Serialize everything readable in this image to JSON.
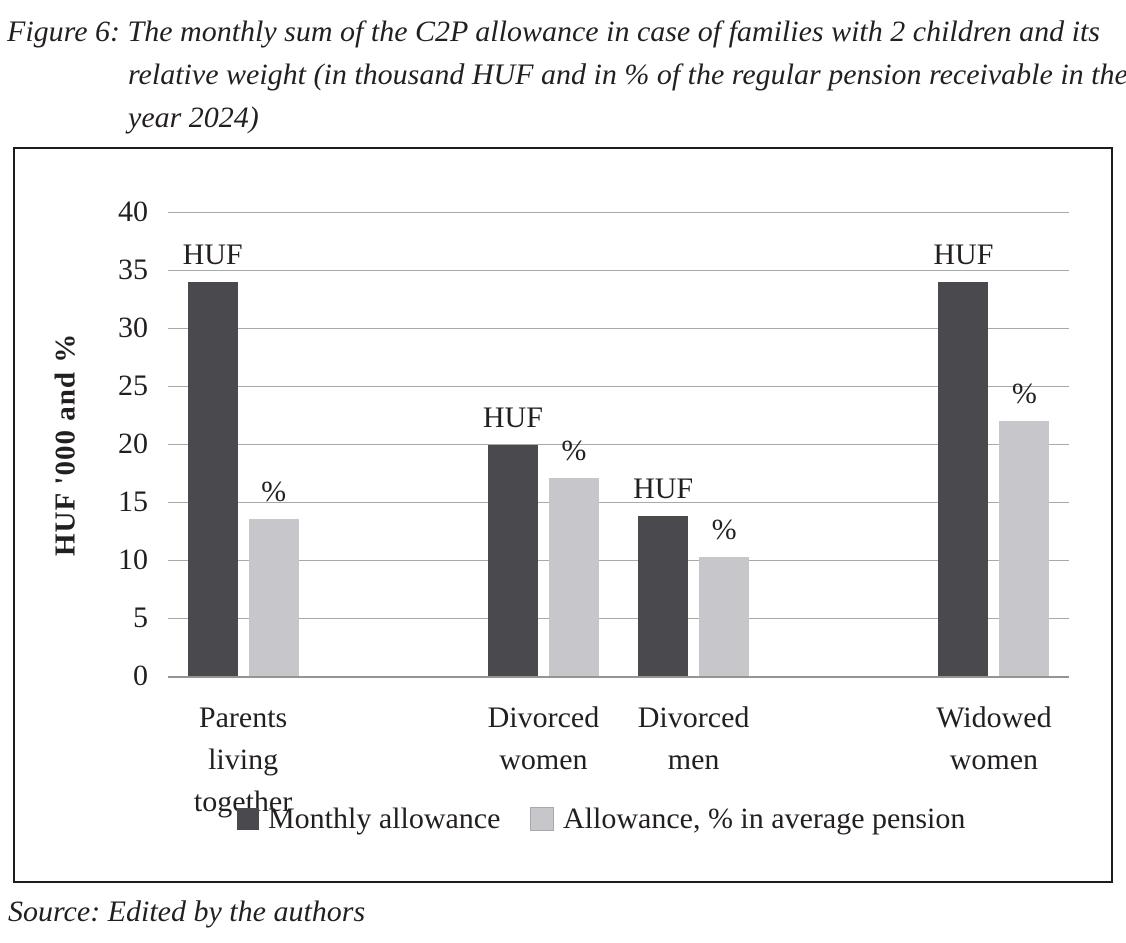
{
  "header": {
    "lines": [
      "Figure 6: The monthly sum of the C2P allowance in case of families with 2 children and its",
      "relative weight (in thousand HUF and in % of the regular pension receivable in the",
      "year 2024)"
    ]
  },
  "source": "Source: Edited by the authors",
  "colors": {
    "dark_bar": "#4a4a4e",
    "light_bar": "#c7c7cb",
    "gridline": "#a4ada4",
    "baseline": "#8f978f",
    "frame": "#1c1c1c",
    "text": "#231f20"
  },
  "chart_data": {
    "type": "bar",
    "figure_label": "Figure 6",
    "title": "The monthly sum of the C2P allowance in case of families with 2 children and its relative weight (in thousand HUF and in % of the regular pension receivable in the year 2024)",
    "categories": [
      "Parents living together",
      "Divorced women",
      "Divorced men",
      "Widowed women"
    ],
    "series": [
      {
        "name": "Monthly allowance",
        "bar_label": "HUF",
        "color": "#4a4a4e",
        "values": [
          34.0,
          19.9,
          13.8,
          34.0
        ]
      },
      {
        "name": "Allowance, % in average pension",
        "bar_label": "%",
        "color": "#c7c7cb",
        "values": [
          13.5,
          17.1,
          10.3,
          22.0
        ]
      }
    ],
    "xlabel": "",
    "ylabel": "HUF '000 and %",
    "ylim": [
      0,
      40
    ],
    "y_ticks": [
      40,
      35,
      30,
      25,
      20,
      15,
      10,
      5,
      0
    ],
    "grid": true,
    "legend_position": "bottom-inside",
    "layout": {
      "slot_count": 6,
      "group_slots": [
        0,
        2,
        3,
        5
      ]
    }
  }
}
